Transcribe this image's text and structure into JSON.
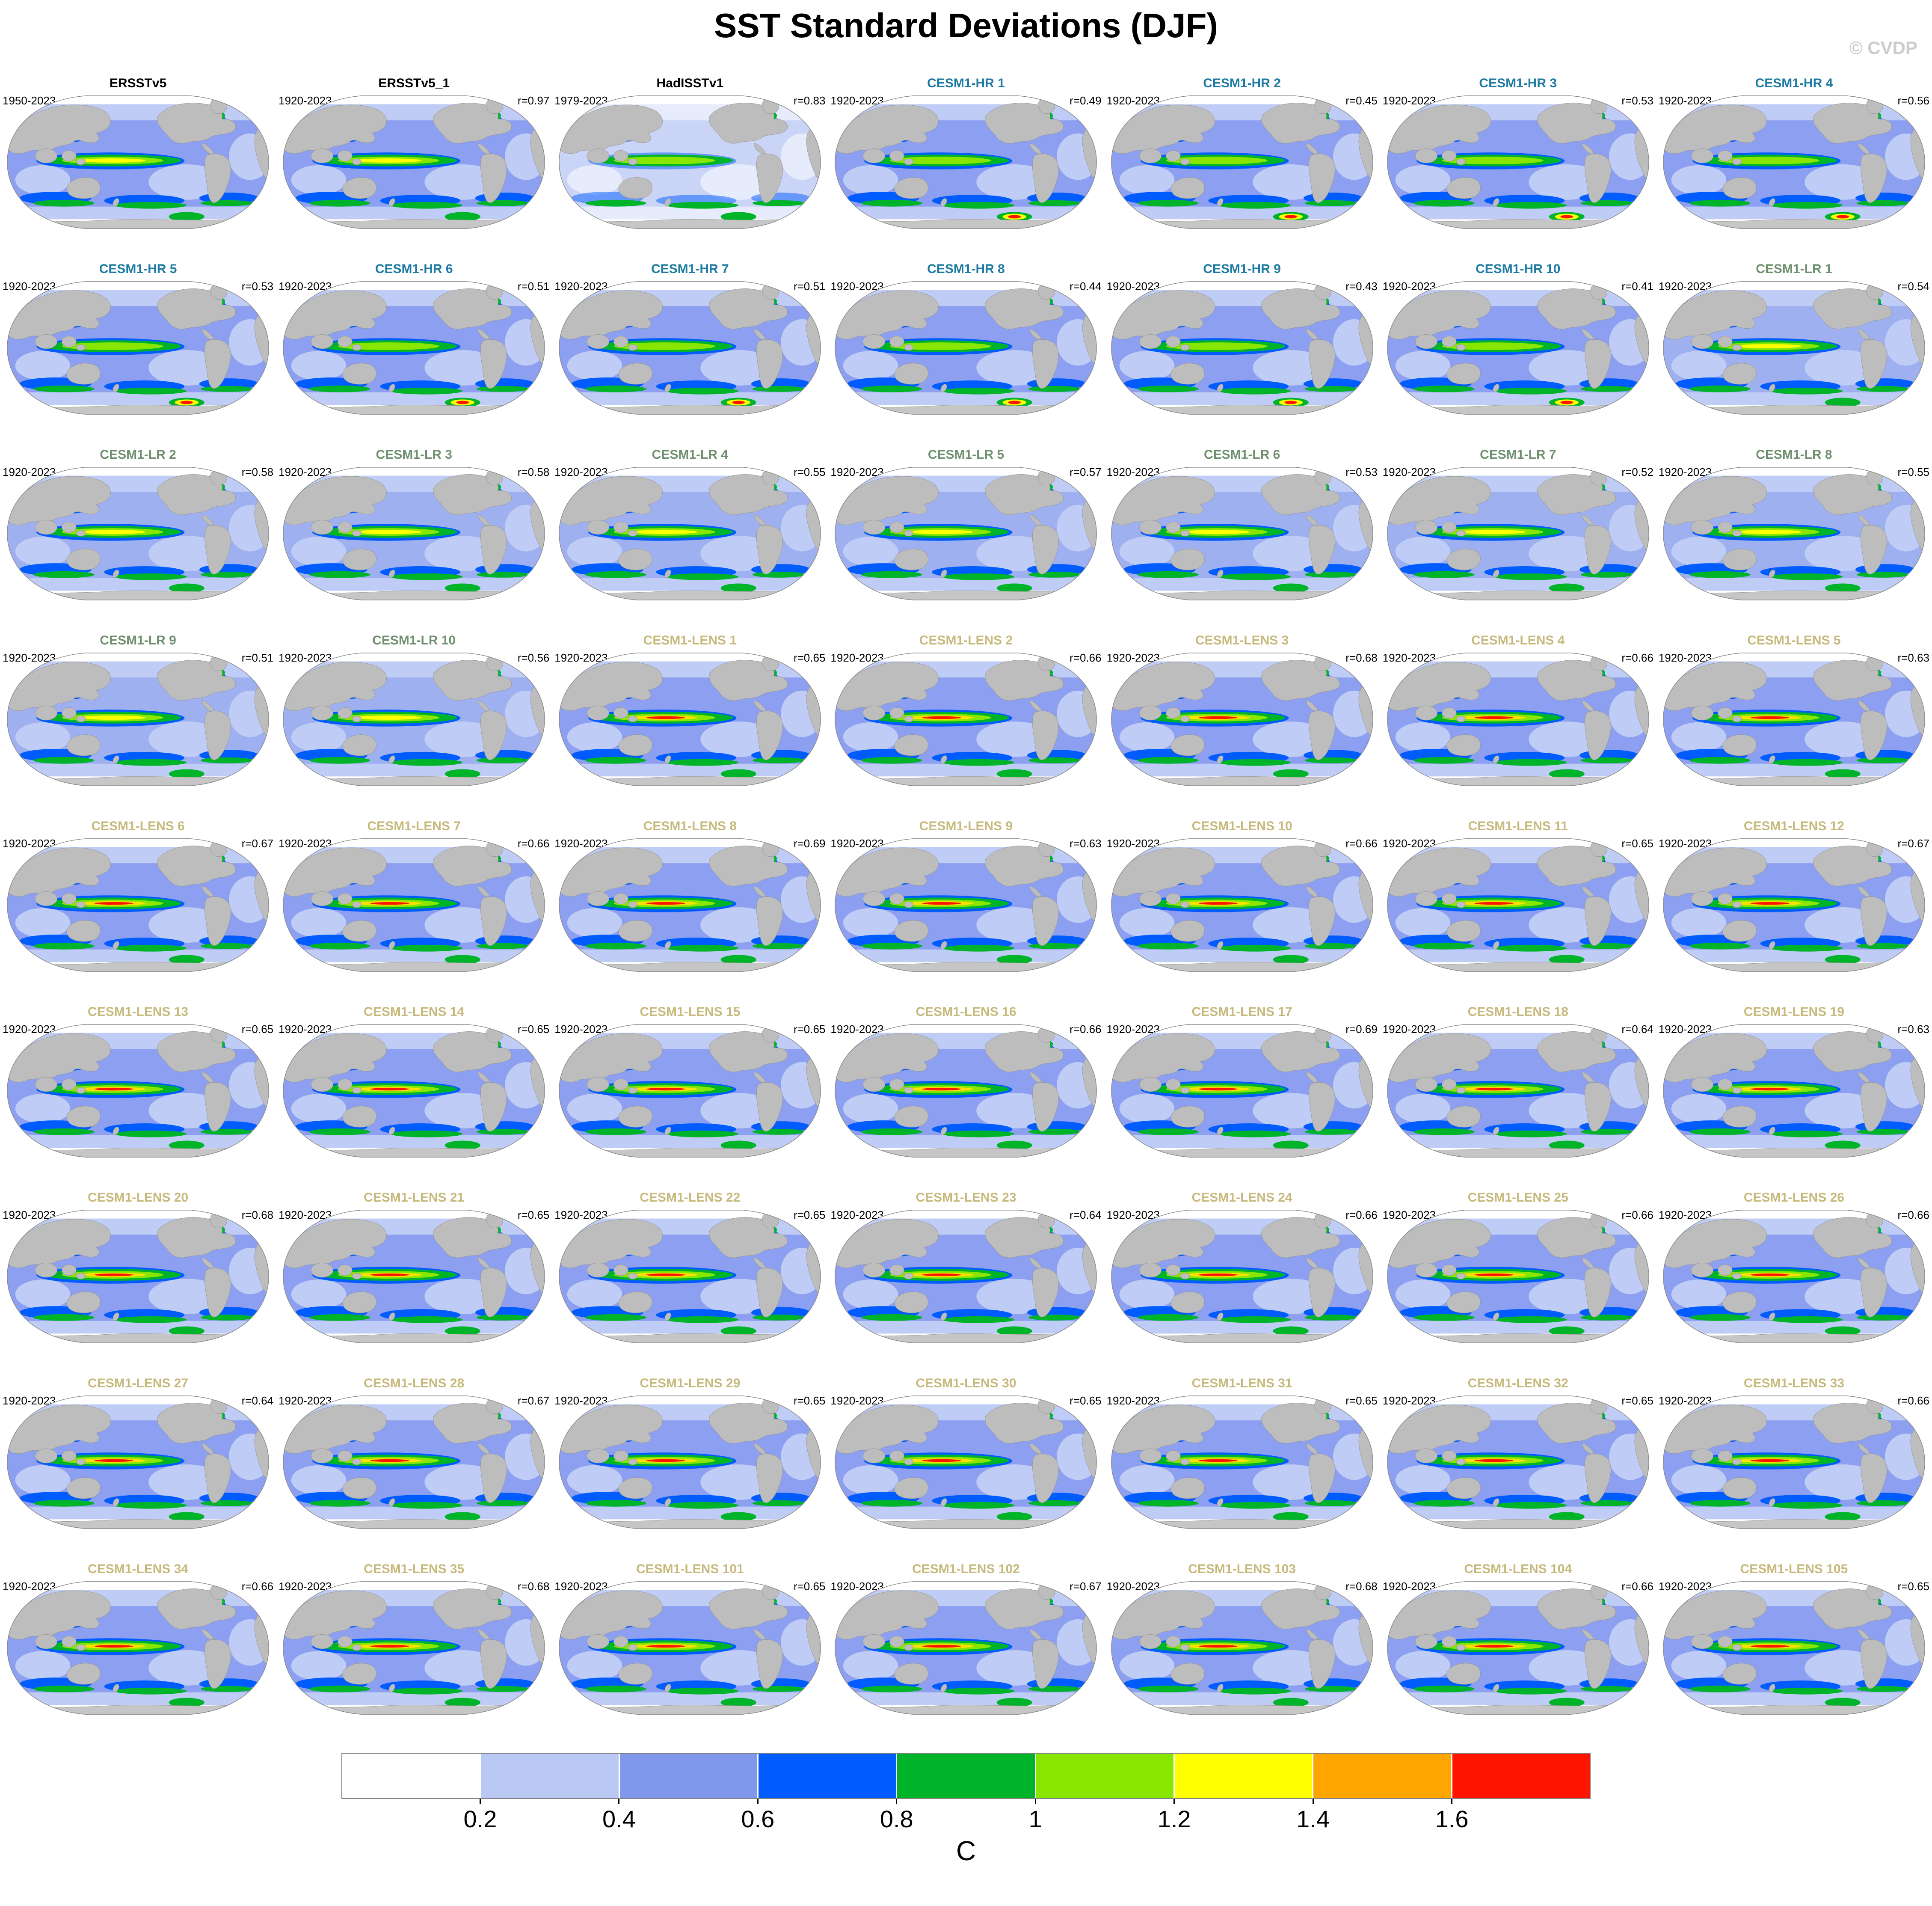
{
  "title": "SST Standard Deviations (DJF)",
  "watermark": "© CVDP",
  "group_colors": {
    "obs": "#000000",
    "hr": "#1d7ba3",
    "lr": "#6f906f",
    "lens": "#c7b97b"
  },
  "chart_data": {
    "type": "heatmap",
    "title": "SST Standard Deviations (DJF)",
    "subtitle": "",
    "unit": "C",
    "projection": "robinson-global-maps",
    "grid": {
      "rows": 9,
      "cols": 7
    },
    "colorbar_levels": [
      0.2,
      0.4,
      0.6,
      0.8,
      1,
      1.2,
      1.4,
      1.6
    ],
    "colorbar_tick_labels": [
      "0.2",
      "0.4",
      "0.6",
      "0.8",
      "1",
      "1.2",
      "1.4",
      "1.6"
    ],
    "colorbar_colors": [
      "#ffffff",
      "#bac9f3",
      "#8098ec",
      "#005cff",
      "#00b42a",
      "#89e600",
      "#ffff00",
      "#ffa500",
      "#fd1500"
    ],
    "legend_position": "bottom",
    "panels": [
      {
        "name": "ERSSTv5",
        "period": "1950-2023",
        "r": null,
        "group": "obs"
      },
      {
        "name": "ERSSTv5_1",
        "period": "1920-2023",
        "r": 0.97,
        "group": "obs"
      },
      {
        "name": "HadISSTv1",
        "period": "1979-2023",
        "r": 0.83,
        "group": "obs"
      },
      {
        "name": "CESM1-HR 1",
        "period": "1920-2023",
        "r": 0.49,
        "group": "hr"
      },
      {
        "name": "CESM1-HR 2",
        "period": "1920-2023",
        "r": 0.45,
        "group": "hr"
      },
      {
        "name": "CESM1-HR 3",
        "period": "1920-2023",
        "r": 0.53,
        "group": "hr"
      },
      {
        "name": "CESM1-HR 4",
        "period": "1920-2023",
        "r": 0.56,
        "group": "hr"
      },
      {
        "name": "CESM1-HR 5",
        "period": "1920-2023",
        "r": 0.53,
        "group": "hr"
      },
      {
        "name": "CESM1-HR 6",
        "period": "1920-2023",
        "r": 0.51,
        "group": "hr"
      },
      {
        "name": "CESM1-HR 7",
        "period": "1920-2023",
        "r": 0.51,
        "group": "hr"
      },
      {
        "name": "CESM1-HR 8",
        "period": "1920-2023",
        "r": 0.44,
        "group": "hr"
      },
      {
        "name": "CESM1-HR 9",
        "period": "1920-2023",
        "r": 0.43,
        "group": "hr"
      },
      {
        "name": "CESM1-HR 10",
        "period": "1920-2023",
        "r": 0.41,
        "group": "hr"
      },
      {
        "name": "CESM1-LR 1",
        "period": "1920-2023",
        "r": 0.54,
        "group": "lr"
      },
      {
        "name": "CESM1-LR 2",
        "period": "1920-2023",
        "r": 0.58,
        "group": "lr"
      },
      {
        "name": "CESM1-LR 3",
        "period": "1920-2023",
        "r": 0.58,
        "group": "lr"
      },
      {
        "name": "CESM1-LR 4",
        "period": "1920-2023",
        "r": 0.55,
        "group": "lr"
      },
      {
        "name": "CESM1-LR 5",
        "period": "1920-2023",
        "r": 0.57,
        "group": "lr"
      },
      {
        "name": "CESM1-LR 6",
        "period": "1920-2023",
        "r": 0.53,
        "group": "lr"
      },
      {
        "name": "CESM1-LR 7",
        "period": "1920-2023",
        "r": 0.52,
        "group": "lr"
      },
      {
        "name": "CESM1-LR 8",
        "period": "1920-2023",
        "r": 0.55,
        "group": "lr"
      },
      {
        "name": "CESM1-LR 9",
        "period": "1920-2023",
        "r": 0.51,
        "group": "lr"
      },
      {
        "name": "CESM1-LR 10",
        "period": "1920-2023",
        "r": 0.56,
        "group": "lr"
      },
      {
        "name": "CESM1-LENS 1",
        "period": "1920-2023",
        "r": 0.65,
        "group": "lens"
      },
      {
        "name": "CESM1-LENS 2",
        "period": "1920-2023",
        "r": 0.66,
        "group": "lens"
      },
      {
        "name": "CESM1-LENS 3",
        "period": "1920-2023",
        "r": 0.68,
        "group": "lens"
      },
      {
        "name": "CESM1-LENS 4",
        "period": "1920-2023",
        "r": 0.66,
        "group": "lens"
      },
      {
        "name": "CESM1-LENS 5",
        "period": "1920-2023",
        "r": 0.63,
        "group": "lens"
      },
      {
        "name": "CESM1-LENS 6",
        "period": "1920-2023",
        "r": 0.67,
        "group": "lens"
      },
      {
        "name": "CESM1-LENS 7",
        "period": "1920-2023",
        "r": 0.66,
        "group": "lens"
      },
      {
        "name": "CESM1-LENS 8",
        "period": "1920-2023",
        "r": 0.69,
        "group": "lens"
      },
      {
        "name": "CESM1-LENS 9",
        "period": "1920-2023",
        "r": 0.63,
        "group": "lens"
      },
      {
        "name": "CESM1-LENS 10",
        "period": "1920-2023",
        "r": 0.66,
        "group": "lens"
      },
      {
        "name": "CESM1-LENS 11",
        "period": "1920-2023",
        "r": 0.65,
        "group": "lens"
      },
      {
        "name": "CESM1-LENS 12",
        "period": "1920-2023",
        "r": 0.67,
        "group": "lens"
      },
      {
        "name": "CESM1-LENS 13",
        "period": "1920-2023",
        "r": 0.65,
        "group": "lens"
      },
      {
        "name": "CESM1-LENS 14",
        "period": "1920-2023",
        "r": 0.65,
        "group": "lens"
      },
      {
        "name": "CESM1-LENS 15",
        "period": "1920-2023",
        "r": 0.65,
        "group": "lens"
      },
      {
        "name": "CESM1-LENS 16",
        "period": "1920-2023",
        "r": 0.66,
        "group": "lens"
      },
      {
        "name": "CESM1-LENS 17",
        "period": "1920-2023",
        "r": 0.69,
        "group": "lens"
      },
      {
        "name": "CESM1-LENS 18",
        "period": "1920-2023",
        "r": 0.64,
        "group": "lens"
      },
      {
        "name": "CESM1-LENS 19",
        "period": "1920-2023",
        "r": 0.63,
        "group": "lens"
      },
      {
        "name": "CESM1-LENS 20",
        "period": "1920-2023",
        "r": 0.68,
        "group": "lens"
      },
      {
        "name": "CESM1-LENS 21",
        "period": "1920-2023",
        "r": 0.65,
        "group": "lens"
      },
      {
        "name": "CESM1-LENS 22",
        "period": "1920-2023",
        "r": 0.65,
        "group": "lens"
      },
      {
        "name": "CESM1-LENS 23",
        "period": "1920-2023",
        "r": 0.64,
        "group": "lens"
      },
      {
        "name": "CESM1-LENS 24",
        "period": "1920-2023",
        "r": 0.66,
        "group": "lens"
      },
      {
        "name": "CESM1-LENS 25",
        "period": "1920-2023",
        "r": 0.66,
        "group": "lens"
      },
      {
        "name": "CESM1-LENS 26",
        "period": "1920-2023",
        "r": 0.66,
        "group": "lens"
      },
      {
        "name": "CESM1-LENS 27",
        "period": "1920-2023",
        "r": 0.64,
        "group": "lens"
      },
      {
        "name": "CESM1-LENS 28",
        "period": "1920-2023",
        "r": 0.67,
        "group": "lens"
      },
      {
        "name": "CESM1-LENS 29",
        "period": "1920-2023",
        "r": 0.65,
        "group": "lens"
      },
      {
        "name": "CESM1-LENS 30",
        "period": "1920-2023",
        "r": 0.65,
        "group": "lens"
      },
      {
        "name": "CESM1-LENS 31",
        "period": "1920-2023",
        "r": 0.65,
        "group": "lens"
      },
      {
        "name": "CESM1-LENS 32",
        "period": "1920-2023",
        "r": 0.65,
        "group": "lens"
      },
      {
        "name": "CESM1-LENS 33",
        "period": "1920-2023",
        "r": 0.66,
        "group": "lens"
      },
      {
        "name": "CESM1-LENS 34",
        "period": "1920-2023",
        "r": 0.66,
        "group": "lens"
      },
      {
        "name": "CESM1-LENS 35",
        "period": "1920-2023",
        "r": 0.68,
        "group": "lens"
      },
      {
        "name": "CESM1-LENS 101",
        "period": "1920-2023",
        "r": 0.65,
        "group": "lens"
      },
      {
        "name": "CESM1-LENS 102",
        "period": "1920-2023",
        "r": 0.67,
        "group": "lens"
      },
      {
        "name": "CESM1-LENS 103",
        "period": "1920-2023",
        "r": 0.68,
        "group": "lens"
      },
      {
        "name": "CESM1-LENS 104",
        "period": "1920-2023",
        "r": 0.66,
        "group": "lens"
      },
      {
        "name": "CESM1-LENS 105",
        "period": "1920-2023",
        "r": 0.65,
        "group": "lens"
      }
    ]
  }
}
